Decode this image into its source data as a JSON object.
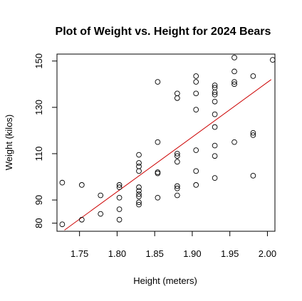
{
  "chart_data": {
    "type": "scatter",
    "title": "Plot of Weight vs. Height for 2024 Bears",
    "xlabel": "Height (meters)",
    "ylabel": "Weight (kilos)",
    "xlim": [
      1.72,
      2.01
    ],
    "ylim": [
      76.5,
      153
    ],
    "x_ticks": [
      1.75,
      1.8,
      1.85,
      1.9,
      1.95,
      2.0
    ],
    "x_tick_labels": [
      "1.75",
      "1.80",
      "1.85",
      "1.90",
      "1.95",
      "2.00"
    ],
    "y_ticks": [
      80,
      90,
      110,
      130,
      150
    ],
    "y_tick_labels": [
      "80",
      "90",
      "110",
      "130",
      "150"
    ],
    "point_style": "open-circle",
    "fit_line": {
      "color": "#cc0000",
      "x": [
        1.73,
        2.005
      ],
      "y": [
        77,
        142
      ]
    },
    "points": [
      [
        1.727,
        97.5
      ],
      [
        1.727,
        79.5
      ],
      [
        1.753,
        96.5
      ],
      [
        1.753,
        81.5
      ],
      [
        1.778,
        92
      ],
      [
        1.778,
        84
      ],
      [
        1.803,
        96.5
      ],
      [
        1.803,
        95.5
      ],
      [
        1.803,
        91
      ],
      [
        1.803,
        86
      ],
      [
        1.803,
        81.5
      ],
      [
        1.829,
        109.5
      ],
      [
        1.829,
        106
      ],
      [
        1.829,
        104.5
      ],
      [
        1.829,
        102.5
      ],
      [
        1.829,
        95.5
      ],
      [
        1.829,
        94
      ],
      [
        1.829,
        92.5
      ],
      [
        1.829,
        91.5
      ],
      [
        1.829,
        89
      ],
      [
        1.829,
        88
      ],
      [
        1.854,
        141
      ],
      [
        1.854,
        115
      ],
      [
        1.854,
        102
      ],
      [
        1.854,
        101.5
      ],
      [
        1.854,
        91
      ],
      [
        1.88,
        136
      ],
      [
        1.88,
        134
      ],
      [
        1.88,
        110
      ],
      [
        1.88,
        109
      ],
      [
        1.88,
        106.5
      ],
      [
        1.88,
        96
      ],
      [
        1.88,
        95
      ],
      [
        1.88,
        92
      ],
      [
        1.905,
        143.5
      ],
      [
        1.905,
        141
      ],
      [
        1.905,
        136
      ],
      [
        1.905,
        129
      ],
      [
        1.905,
        111.5
      ],
      [
        1.905,
        102.5
      ],
      [
        1.905,
        96.5
      ],
      [
        1.93,
        139.5
      ],
      [
        1.93,
        138.5
      ],
      [
        1.93,
        136.5
      ],
      [
        1.93,
        135.5
      ],
      [
        1.93,
        132.5
      ],
      [
        1.93,
        127
      ],
      [
        1.93,
        121.5
      ],
      [
        1.93,
        113.5
      ],
      [
        1.93,
        109
      ],
      [
        1.93,
        99.5
      ],
      [
        1.956,
        151.5
      ],
      [
        1.956,
        145.5
      ],
      [
        1.956,
        141
      ],
      [
        1.956,
        140
      ],
      [
        1.956,
        115
      ],
      [
        1.981,
        143.5
      ],
      [
        1.981,
        119
      ],
      [
        1.981,
        118
      ],
      [
        1.981,
        100.5
      ],
      [
        2.007,
        150.5
      ]
    ]
  }
}
